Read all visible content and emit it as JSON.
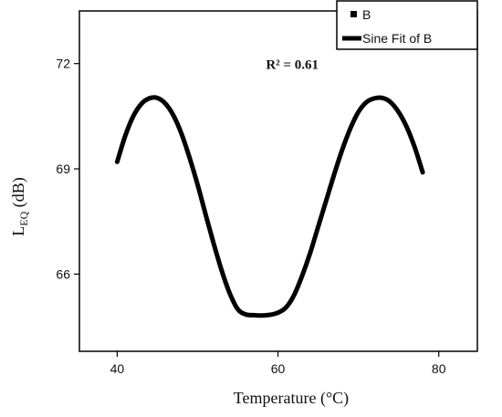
{
  "chart_data": {
    "type": "line",
    "xlabel": "Temperature (°C)",
    "ylabel": {
      "base": "L",
      "sub": "EQ",
      "rest": " (dB)"
    },
    "xlim": [
      35.3,
      84.8
    ],
    "ylim": [
      63.8,
      73.5
    ],
    "xticks": [
      40,
      60,
      80
    ],
    "yticks": [
      66,
      69,
      72
    ],
    "grid": false,
    "legend_position": "top-right",
    "legend": [
      {
        "name": "B",
        "marker": "square"
      },
      {
        "name": "Sine Fit of B",
        "marker": "line"
      }
    ],
    "annotation": {
      "text": "R² = 0.61",
      "x": 58.5,
      "y": 72.0
    },
    "series": [
      {
        "name": "Sine Fit of B",
        "color": "#000000",
        "x_range": [
          40,
          78
        ],
        "y_range": [
          64.82,
          71.02
        ],
        "points": [
          [
            40,
            69.2
          ],
          [
            41,
            69.94
          ],
          [
            42,
            70.5
          ],
          [
            43,
            70.85
          ],
          [
            44,
            71.01
          ],
          [
            45,
            71.02
          ],
          [
            46,
            70.86
          ],
          [
            47,
            70.52
          ],
          [
            48,
            70.0
          ],
          [
            49,
            69.32
          ],
          [
            50,
            68.55
          ],
          [
            51,
            67.7
          ],
          [
            52,
            66.87
          ],
          [
            53,
            66.1
          ],
          [
            54,
            65.45
          ],
          [
            55,
            65.0
          ],
          [
            56,
            64.85
          ],
          [
            57,
            64.83
          ],
          [
            58,
            64.82
          ],
          [
            59,
            64.84
          ],
          [
            60,
            64.9
          ],
          [
            61,
            65.05
          ],
          [
            62,
            65.4
          ],
          [
            63,
            65.95
          ],
          [
            64,
            66.6
          ],
          [
            65,
            67.35
          ],
          [
            66,
            68.1
          ],
          [
            67,
            68.85
          ],
          [
            68,
            69.55
          ],
          [
            69,
            70.15
          ],
          [
            70,
            70.62
          ],
          [
            71,
            70.9
          ],
          [
            72,
            71.01
          ],
          [
            73,
            71.02
          ],
          [
            74,
            70.9
          ],
          [
            75,
            70.62
          ],
          [
            76,
            70.2
          ],
          [
            77,
            69.62
          ],
          [
            78,
            68.9
          ]
        ]
      }
    ]
  }
}
